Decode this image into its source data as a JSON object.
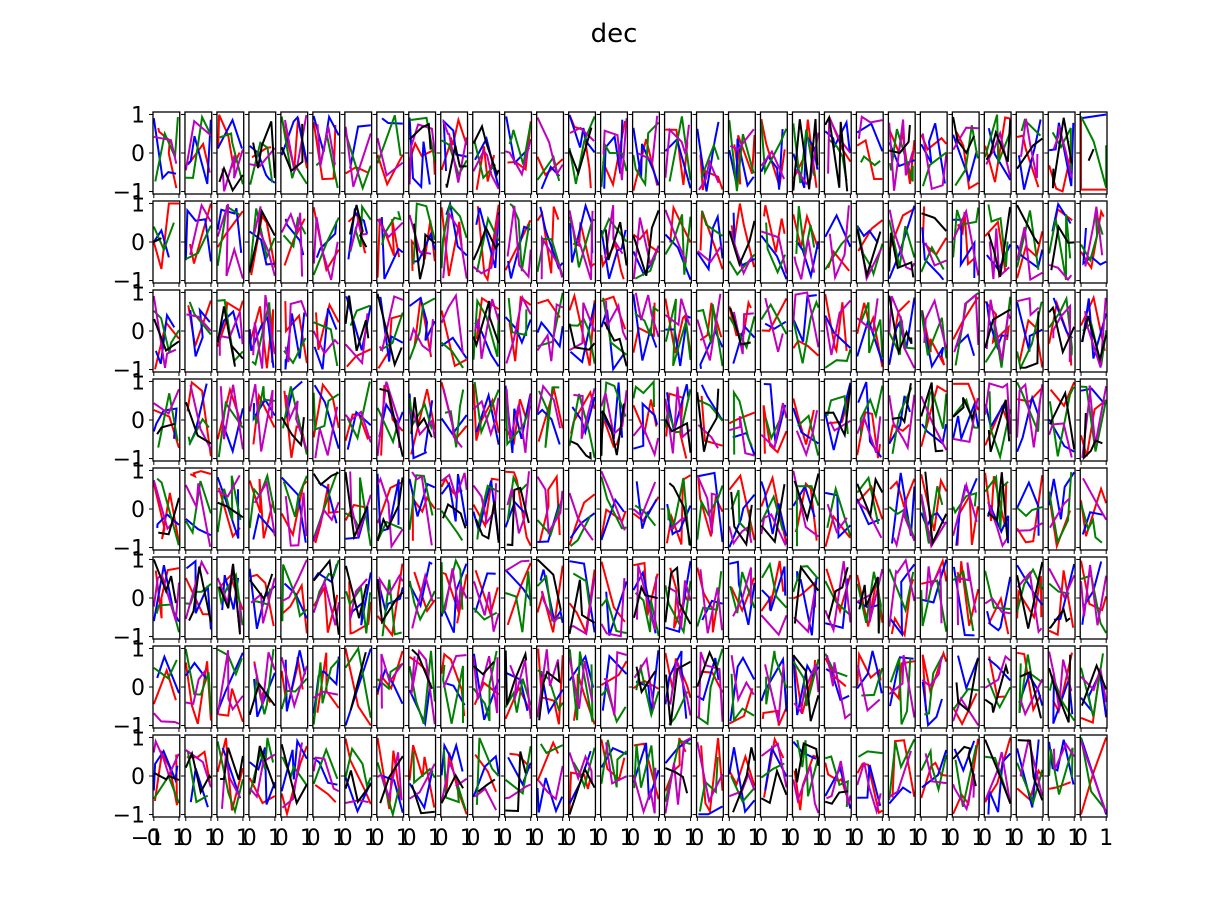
{
  "figure": {
    "title": "dec"
  },
  "chart_data": {
    "type": "line",
    "title": "dec",
    "grid": false,
    "layout": {
      "rows": 8,
      "cols": 30
    },
    "ylim": [
      -1,
      1
    ],
    "ytick_labels": [
      "1",
      "0",
      "−1"
    ],
    "xtick_labels": [
      "−1",
      "0",
      "1"
    ],
    "series_colors": [
      "#ff0000",
      "#0000ff",
      "#008000",
      "#bf00bf",
      "#000000"
    ],
    "panels": [
      {
        "row": 0,
        "col": 29,
        "series": [
          {
            "color": "#ff0000",
            "x": [
              0,
              0,
              0,
              0.5,
              1
            ],
            "y": [
              0.95,
              0.2,
              -0.95,
              -0.95,
              -0.95
            ]
          },
          {
            "color": "#0000ff",
            "x": [
              0,
              0.5,
              1
            ],
            "y": [
              0.9,
              0.95,
              1.0
            ]
          },
          {
            "color": "#008000",
            "x": [
              0,
              0.5,
              1,
              1
            ],
            "y": [
              0.95,
              0.3,
              -0.9,
              0.2
            ]
          },
          {
            "color": "#000000",
            "x": [
              0.3,
              0.5
            ],
            "y": [
              -0.2,
              0.1
            ]
          }
        ]
      },
      {
        "row": 1,
        "col": 0,
        "series": [
          {
            "color": "#ff0000",
            "x": [
              0,
              0.3,
              0.6,
              1
            ],
            "y": [
              0,
              -0.7,
              1.0,
              1.0
            ]
          },
          {
            "color": "#0000ff",
            "x": [
              0,
              0.3,
              0.6
            ],
            "y": [
              0.0,
              0.3,
              -0.4
            ]
          },
          {
            "color": "#008000",
            "x": [
              0,
              0.4,
              0.8
            ],
            "y": [
              0.4,
              -0.2,
              0.5
            ]
          },
          {
            "color": "#000000",
            "x": [
              0,
              0.3
            ],
            "y": [
              0.0,
              0.1
            ]
          }
        ]
      },
      {
        "row": 6,
        "col": 6,
        "series": [
          {
            "color": "#ff0000",
            "x": [
              0,
              0.5,
              1
            ],
            "y": [
              1,
              -0.5,
              -1
            ]
          },
          {
            "color": "#0000ff",
            "x": [
              0,
              1
            ],
            "y": [
              -1,
              1
            ]
          },
          {
            "color": "#008000",
            "x": [
              0,
              0.5,
              1
            ],
            "y": [
              0.5,
              1,
              -0.8
            ]
          },
          {
            "color": "#000000",
            "x": [
              0.2,
              0.8
            ],
            "y": [
              -0.6,
              0.9
            ]
          }
        ]
      },
      {
        "row": 7,
        "col": 29,
        "series": [
          {
            "color": "#ff0000",
            "x": [
              0,
              0.5,
              1
            ],
            "y": [
              -1,
              0.1,
              1
            ]
          },
          {
            "color": "#0000ff",
            "x": [
              0,
              1,
              1
            ],
            "y": [
              1,
              -1,
              -1
            ]
          },
          {
            "color": "#008000",
            "x": [
              0,
              0.4,
              1
            ],
            "y": [
              1,
              -0.4,
              -0.9
            ]
          },
          {
            "color": "#bf00bf",
            "x": [
              0,
              1
            ],
            "y": [
              0.9,
              -0.95
            ]
          }
        ]
      }
    ]
  }
}
